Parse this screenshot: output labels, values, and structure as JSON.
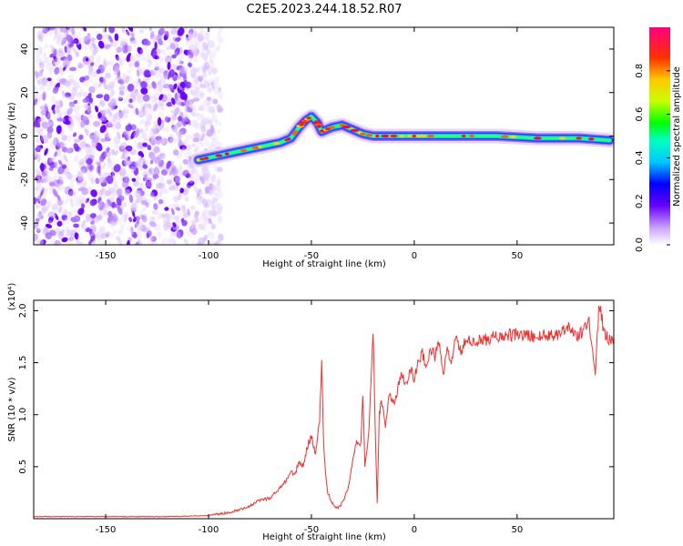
{
  "title": "C2E5.2023.244.18.52.R07",
  "top_panel": {
    "xlabel": "Height of straight line (km)",
    "ylabel": "Frequency (Hz)",
    "colorbar_label": "Normalized spectral amplitude"
  },
  "bottom_panel": {
    "xlabel": "Height of straight line (km)",
    "ylabel": "SNR (10 * v/v)",
    "multiplier": "(x10⁴)"
  },
  "chart_data": [
    {
      "type": "heatmap",
      "xlabel": "Height of straight line (km)",
      "ylabel": "Frequency (Hz)",
      "xlim": [
        -185,
        97
      ],
      "ylim": [
        -50,
        50
      ],
      "xticks": [
        -150,
        -100,
        -50,
        0,
        50
      ],
      "yticks": [
        -40,
        -20,
        0,
        20,
        40
      ],
      "colorbar": {
        "label": "Normalized spectral amplitude",
        "range": [
          0,
          1
        ],
        "ticks": [
          0.0,
          0.2,
          0.4,
          0.6,
          0.8
        ]
      },
      "noise_region_x": [
        -185,
        -100
      ],
      "ridge": {
        "x": [
          -105,
          -95,
          -85,
          -75,
          -65,
          -60,
          -56,
          -53,
          -50,
          -47,
          -45,
          -40,
          -35,
          -30,
          -25,
          -20,
          -15,
          -10,
          0,
          10,
          20,
          40,
          60,
          80,
          95
        ],
        "y": [
          -11,
          -9,
          -7,
          -5,
          -3,
          -1,
          4,
          7,
          9,
          6,
          2,
          4,
          5,
          3,
          1,
          0,
          0,
          0,
          0,
          0,
          0,
          0,
          -1,
          -1,
          -2
        ]
      }
    },
    {
      "type": "line",
      "xlabel": "Height of straight line (km)",
      "ylabel": "SNR (10 * v/v)",
      "multiplier": "(x10⁴)",
      "xlim": [
        -185,
        97
      ],
      "ylim": [
        0,
        2.1
      ],
      "xticks": [
        -150,
        -100,
        -50,
        0,
        50
      ],
      "yticks": [
        0.5,
        1.0,
        1.5,
        2.0
      ],
      "series": [
        {
          "color": "#ee3333",
          "x": [
            -185,
            -150,
            -120,
            -100,
            -90,
            -80,
            -75,
            -70,
            -65,
            -62,
            -60,
            -58,
            -56,
            -54,
            -52,
            -50,
            -48,
            -46,
            -45,
            -44,
            -43,
            -42,
            -40,
            -38,
            -36,
            -34,
            -32,
            -30,
            -28,
            -26,
            -25,
            -24,
            -22,
            -20,
            -19,
            -18,
            -17,
            -16,
            -15,
            -14,
            -12,
            -10,
            -8,
            -6,
            -4,
            -2,
            0,
            2,
            4,
            6,
            8,
            10,
            12,
            14,
            16,
            18,
            20,
            22,
            25,
            30,
            40,
            50,
            60,
            70,
            75,
            80,
            85,
            88,
            90,
            92,
            95,
            97
          ],
          "y": [
            0.02,
            0.02,
            0.02,
            0.03,
            0.06,
            0.12,
            0.18,
            0.2,
            0.3,
            0.38,
            0.45,
            0.42,
            0.55,
            0.5,
            0.7,
            0.8,
            0.6,
            0.95,
            1.5,
            0.7,
            0.4,
            0.25,
            0.15,
            0.1,
            0.12,
            0.2,
            0.3,
            0.55,
            0.75,
            0.7,
            1.2,
            0.5,
            0.85,
            1.82,
            0.9,
            0.15,
            1.0,
            1.15,
            1.05,
            0.9,
            1.2,
            1.1,
            1.25,
            1.4,
            1.3,
            1.45,
            1.35,
            1.5,
            1.6,
            1.45,
            1.65,
            1.55,
            1.7,
            1.4,
            1.6,
            1.5,
            1.75,
            1.6,
            1.7,
            1.7,
            1.75,
            1.77,
            1.75,
            1.78,
            1.85,
            1.75,
            1.9,
            1.4,
            2.1,
            1.8,
            1.72,
            1.74
          ]
        }
      ]
    }
  ]
}
